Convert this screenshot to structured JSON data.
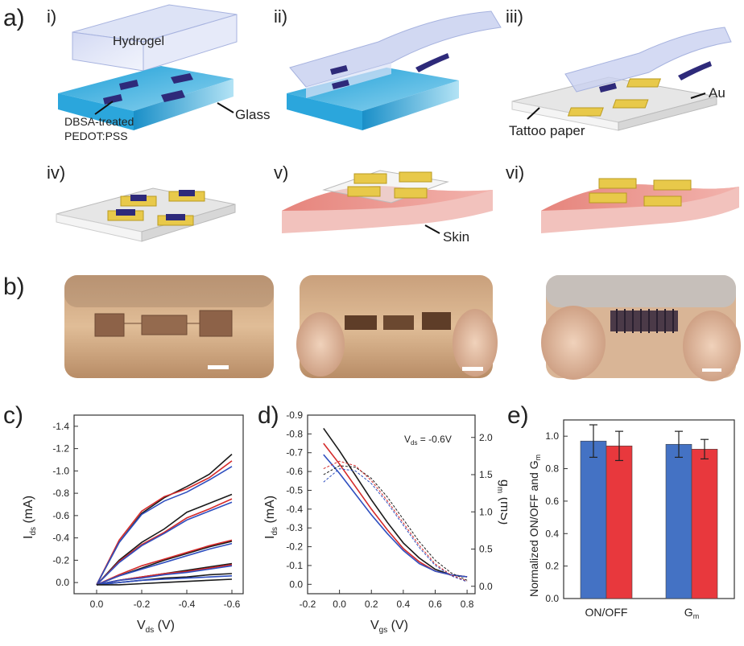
{
  "panel_a": {
    "letter": "a)",
    "steps": [
      "i)",
      "ii)",
      "iii)",
      "iv)",
      "v)",
      "vi)"
    ],
    "labels": {
      "hydrogel": "Hydrogel",
      "glass": "Glass",
      "dbsa_line1": "DBSA-treated",
      "dbsa_line2": "PEDOT:PSS",
      "tattoo": "Tattoo paper",
      "au": "Au",
      "skin": "Skin"
    }
  },
  "panel_b": {
    "letter": "b)",
    "photos": [
      "skin-photo-flat",
      "skin-photo-compressed",
      "skin-photo-pinched"
    ]
  },
  "colors": {
    "black": "#1a1a1a",
    "red": "#d42a2a",
    "blue": "#2f4fbf",
    "bar_blue": "#4472c4",
    "bar_red": "#e8383d"
  },
  "chart_data": [
    {
      "id": "c",
      "letter": "c)",
      "type": "line",
      "xlabel_main": "V",
      "xlabel_sub": "ds",
      "xlabel_unit": " (V)",
      "ylabel_main": "I",
      "ylabel_sub": "ds",
      "ylabel_unit": " (mA)",
      "xlim": [
        0.1,
        -0.65
      ],
      "ylim": [
        0.1,
        -1.5
      ],
      "xticks": [
        0.0,
        -0.2,
        -0.4,
        -0.6
      ],
      "xtick_labels": [
        "0.0",
        "-0.2",
        "-0.4",
        "-0.6"
      ],
      "yticks": [
        0.0,
        -0.2,
        -0.4,
        -0.6,
        -0.8,
        -1.0,
        -1.2,
        -1.4
      ],
      "ytick_labels": [
        "0.0",
        "-0.2",
        "-0.4",
        "-0.6",
        "-0.8",
        "-1.0",
        "-1.2",
        "-1.4"
      ],
      "x": [
        0.0,
        -0.1,
        -0.2,
        -0.3,
        -0.4,
        -0.5,
        -0.6
      ],
      "series": [
        {
          "name": "black-1",
          "color": "black",
          "values": [
            0.02,
            -0.36,
            -0.62,
            -0.76,
            -0.86,
            -0.97,
            -1.15
          ]
        },
        {
          "name": "red-1",
          "color": "red",
          "values": [
            0.02,
            -0.38,
            -0.64,
            -0.77,
            -0.84,
            -0.94,
            -1.09
          ]
        },
        {
          "name": "blue-1",
          "color": "blue",
          "values": [
            0.02,
            -0.36,
            -0.61,
            -0.73,
            -0.81,
            -0.92,
            -1.04
          ]
        },
        {
          "name": "black-2",
          "color": "black",
          "values": [
            0.02,
            -0.2,
            -0.36,
            -0.48,
            -0.63,
            -0.71,
            -0.79
          ]
        },
        {
          "name": "red-2",
          "color": "red",
          "values": [
            0.02,
            -0.19,
            -0.34,
            -0.45,
            -0.58,
            -0.66,
            -0.75
          ]
        },
        {
          "name": "blue-2",
          "color": "blue",
          "values": [
            0.02,
            -0.18,
            -0.33,
            -0.44,
            -0.56,
            -0.64,
            -0.72
          ]
        },
        {
          "name": "black-3",
          "color": "black",
          "values": [
            0.02,
            -0.06,
            -0.13,
            -0.2,
            -0.26,
            -0.32,
            -0.37
          ]
        },
        {
          "name": "red-3",
          "color": "red",
          "values": [
            0.02,
            -0.07,
            -0.15,
            -0.21,
            -0.27,
            -0.33,
            -0.38
          ]
        },
        {
          "name": "blue-3",
          "color": "blue",
          "values": [
            0.02,
            -0.06,
            -0.12,
            -0.18,
            -0.24,
            -0.3,
            -0.35
          ]
        },
        {
          "name": "black-4",
          "color": "black",
          "values": [
            0.02,
            -0.02,
            -0.05,
            -0.08,
            -0.11,
            -0.14,
            -0.17
          ]
        },
        {
          "name": "red-4",
          "color": "red",
          "values": [
            0.02,
            -0.02,
            -0.05,
            -0.08,
            -0.1,
            -0.13,
            -0.16
          ]
        },
        {
          "name": "blue-4",
          "color": "blue",
          "values": [
            0.02,
            -0.02,
            -0.04,
            -0.07,
            -0.09,
            -0.12,
            -0.15
          ]
        },
        {
          "name": "black-5",
          "color": "black",
          "values": [
            0.02,
            0.0,
            -0.02,
            -0.04,
            -0.05,
            -0.07,
            -0.08
          ]
        },
        {
          "name": "blue-5",
          "color": "blue",
          "values": [
            0.02,
            0.0,
            -0.02,
            -0.03,
            -0.04,
            -0.05,
            -0.06
          ]
        },
        {
          "name": "black-6",
          "color": "black",
          "values": [
            0.02,
            0.02,
            0.01,
            0.0,
            -0.01,
            -0.02,
            -0.03
          ]
        }
      ]
    },
    {
      "id": "d",
      "letter": "d)",
      "type": "line",
      "annotation_main": "V",
      "annotation_sub": "ds",
      "annotation_value": " = -0.6V",
      "xlabel_main": "V",
      "xlabel_sub": "gs",
      "xlabel_unit": " (V)",
      "ylabel_main": "I",
      "ylabel_sub": "ds",
      "ylabel_unit": " (mA)",
      "y2label_main": "g",
      "y2label_sub": "m",
      "y2label_unit": " (mS)",
      "xlim": [
        -0.2,
        0.85
      ],
      "ylim": [
        0.05,
        -0.9
      ],
      "y2lim": [
        -0.1,
        2.3
      ],
      "xticks": [
        -0.2,
        0.0,
        0.2,
        0.4,
        0.6,
        0.8
      ],
      "xtick_labels": [
        "-0.2",
        "0.0",
        "0.2",
        "0.4",
        "0.6",
        "0.8"
      ],
      "yticks": [
        0.0,
        -0.1,
        -0.2,
        -0.3,
        -0.4,
        -0.5,
        -0.6,
        -0.7,
        -0.8,
        -0.9
      ],
      "ytick_labels": [
        "0.0",
        "-0.1",
        "-0.2",
        "-0.3",
        "-0.4",
        "-0.5",
        "-0.6",
        "-0.7",
        "-0.8",
        "-0.9"
      ],
      "y2ticks": [
        0.0,
        0.5,
        1.0,
        1.5,
        2.0
      ],
      "y2tick_labels": [
        "0.0",
        "0.5",
        "1.0",
        "1.5",
        "2.0"
      ],
      "x": [
        -0.1,
        0.0,
        0.1,
        0.2,
        0.3,
        0.4,
        0.5,
        0.6,
        0.7,
        0.8
      ],
      "series": [
        {
          "name": "Ids-black",
          "color": "black",
          "axis": "left",
          "dashed": false,
          "values": [
            -0.83,
            -0.71,
            -0.58,
            -0.45,
            -0.33,
            -0.22,
            -0.14,
            -0.08,
            -0.05,
            -0.04
          ]
        },
        {
          "name": "Ids-red",
          "color": "red",
          "axis": "left",
          "dashed": false,
          "values": [
            -0.75,
            -0.64,
            -0.52,
            -0.4,
            -0.29,
            -0.19,
            -0.12,
            -0.07,
            -0.05,
            -0.04
          ]
        },
        {
          "name": "Ids-blue",
          "color": "blue",
          "axis": "left",
          "dashed": false,
          "values": [
            -0.69,
            -0.59,
            -0.48,
            -0.37,
            -0.27,
            -0.18,
            -0.11,
            -0.07,
            -0.05,
            -0.04
          ]
        },
        {
          "name": "gm-black",
          "color": "black",
          "axis": "right",
          "dashed": true,
          "values": [
            1.5,
            1.62,
            1.6,
            1.45,
            1.2,
            0.9,
            0.6,
            0.35,
            0.18,
            0.08
          ]
        },
        {
          "name": "gm-red",
          "color": "red",
          "axis": "right",
          "dashed": true,
          "values": [
            1.58,
            1.68,
            1.62,
            1.42,
            1.15,
            0.85,
            0.55,
            0.3,
            0.15,
            0.07
          ]
        },
        {
          "name": "gm-blue",
          "color": "blue",
          "axis": "right",
          "dashed": true,
          "values": [
            1.4,
            1.58,
            1.55,
            1.38,
            1.12,
            0.82,
            0.52,
            0.28,
            0.14,
            0.06
          ]
        }
      ]
    },
    {
      "id": "e",
      "letter": "e)",
      "type": "bar",
      "ylabel": "Normalized ON/OFF and G",
      "ylabel_sub": "m",
      "ylim": [
        0.0,
        1.1
      ],
      "yticks": [
        0.0,
        0.2,
        0.4,
        0.6,
        0.8,
        1.0
      ],
      "ytick_labels": [
        "0.0",
        "0.2",
        "0.4",
        "0.6",
        "0.8",
        "1.0"
      ],
      "categories": [
        "ON/OFF",
        "G"
      ],
      "category_subs": [
        "",
        "m"
      ],
      "series": [
        {
          "name": "blue",
          "color": "bar_blue",
          "values": [
            0.97,
            0.95
          ],
          "errors": [
            0.1,
            0.08
          ]
        },
        {
          "name": "red",
          "color": "bar_red",
          "values": [
            0.94,
            0.92
          ],
          "errors": [
            0.09,
            0.06
          ]
        }
      ]
    }
  ]
}
